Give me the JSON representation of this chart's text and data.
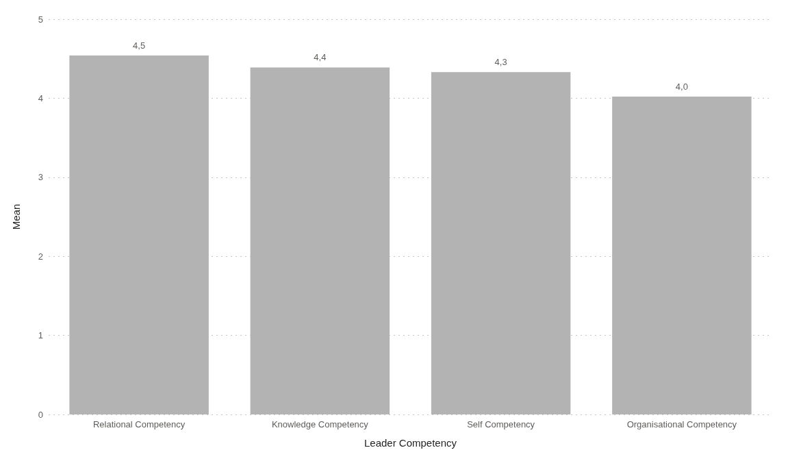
{
  "chart_data": {
    "type": "bar",
    "xlabel": "Leader Competency",
    "ylabel": "Mean",
    "categories": [
      "Relational Competency",
      "Knowledge Competency",
      "Self Competency",
      "Organisational Competency"
    ],
    "values": [
      4.54,
      4.39,
      4.33,
      4.02
    ],
    "value_labels": [
      "4,5",
      "4,4",
      "4,3",
      "4,0"
    ],
    "color": "#b3b3b3",
    "ylim": [
      0,
      5
    ],
    "yticks": [
      0,
      1,
      2,
      3,
      4,
      5
    ],
    "grid": "y"
  }
}
